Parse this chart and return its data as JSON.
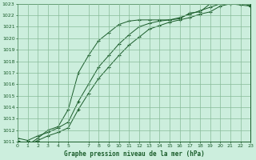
{
  "title": "Graphe pression niveau de la mer (hPa)",
  "bg_color": "#cceedd",
  "plot_bg_color": "#cceedd",
  "grid_color": "#88bb99",
  "line_color": "#1a5c2a",
  "xlim": [
    0,
    23
  ],
  "ylim": [
    1011,
    1023
  ],
  "xticks": [
    0,
    1,
    2,
    3,
    4,
    5,
    7,
    8,
    9,
    10,
    11,
    12,
    13,
    14,
    15,
    16,
    17,
    18,
    19,
    20,
    21,
    22,
    23
  ],
  "yticks": [
    1011,
    1012,
    1013,
    1014,
    1015,
    1016,
    1017,
    1018,
    1019,
    1020,
    1021,
    1022,
    1023
  ],
  "series1_x": [
    0,
    1,
    2,
    3,
    4,
    5,
    6,
    7,
    8,
    9,
    10,
    11,
    12,
    13,
    14,
    15,
    16,
    17,
    18,
    19,
    20,
    21,
    22,
    23
  ],
  "series1_y": [
    1011.1,
    1010.7,
    1011.1,
    1011.5,
    1011.8,
    1012.2,
    1013.8,
    1015.2,
    1016.5,
    1017.5,
    1018.5,
    1019.4,
    1020.1,
    1020.8,
    1021.1,
    1021.4,
    1021.6,
    1021.8,
    1022.1,
    1022.3,
    1022.8,
    1023.0,
    1023.1,
    1022.8
  ],
  "series2_x": [
    0,
    1,
    2,
    3,
    4,
    5,
    6,
    7,
    8,
    9,
    10,
    11,
    12,
    13,
    14,
    15,
    16,
    17,
    18,
    19,
    20,
    21,
    22,
    23
  ],
  "series2_y": [
    1011.0,
    1010.7,
    1011.3,
    1012.0,
    1012.3,
    1013.8,
    1017.0,
    1018.5,
    1019.8,
    1020.5,
    1021.2,
    1021.5,
    1021.6,
    1021.6,
    1021.6,
    1021.6,
    1021.7,
    1022.2,
    1022.3,
    1023.0,
    1023.1,
    1023.0,
    1022.9,
    1022.8
  ],
  "series3_x": [
    0,
    1,
    2,
    3,
    4,
    5,
    6,
    7,
    8,
    9,
    10,
    11,
    12,
    13,
    14,
    15,
    16,
    17,
    18,
    19,
    20,
    21,
    22,
    23
  ],
  "series3_y": [
    1011.3,
    1011.1,
    1011.5,
    1011.8,
    1012.2,
    1012.7,
    1014.5,
    1016.0,
    1017.5,
    1018.5,
    1019.5,
    1020.3,
    1021.0,
    1021.3,
    1021.5,
    1021.6,
    1021.8,
    1022.1,
    1022.4,
    1022.7,
    1023.0,
    1023.1,
    1023.2,
    1022.9
  ]
}
